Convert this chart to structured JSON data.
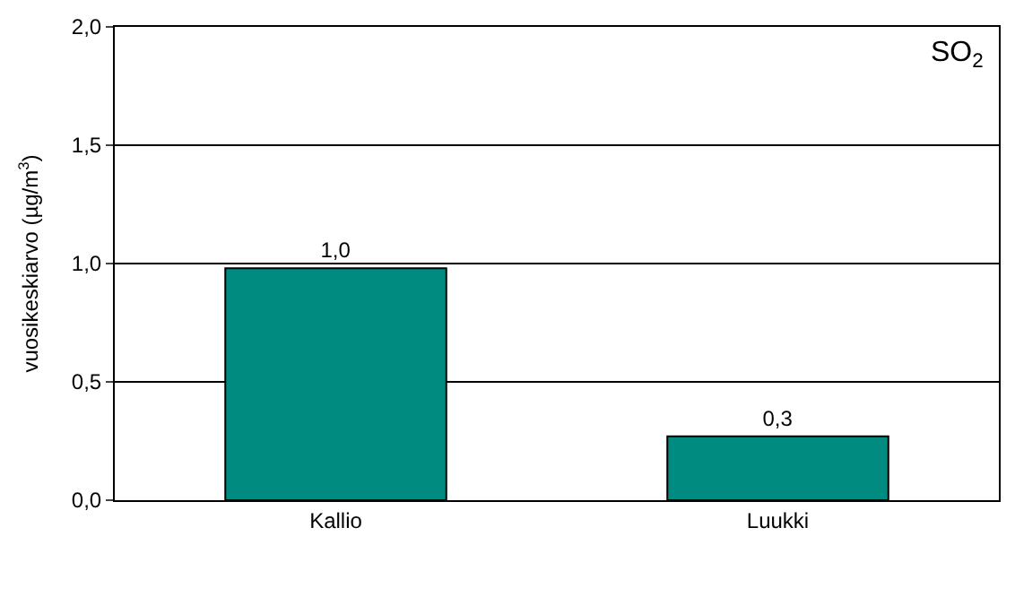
{
  "chart_data": {
    "type": "bar",
    "categories": [
      "Kallio",
      "Luukki"
    ],
    "values": [
      0.98,
      0.27
    ],
    "value_labels": [
      "1,0",
      "0,3"
    ],
    "color": "#008b80",
    "ylabel": "vuosikeskiarvo (µg/m$^{3}$)",
    "ylim": [
      0,
      2
    ],
    "yticks": [
      {
        "value": 0,
        "label": "0,0"
      },
      {
        "value": 0.5,
        "label": "0,5"
      },
      {
        "value": 1,
        "label": "1,0"
      },
      {
        "value": 1.5,
        "label": "1,5"
      },
      {
        "value": 2,
        "label": "2,0"
      }
    ],
    "grid": "y",
    "annotations": [
      "SO$_{2}$"
    ]
  }
}
